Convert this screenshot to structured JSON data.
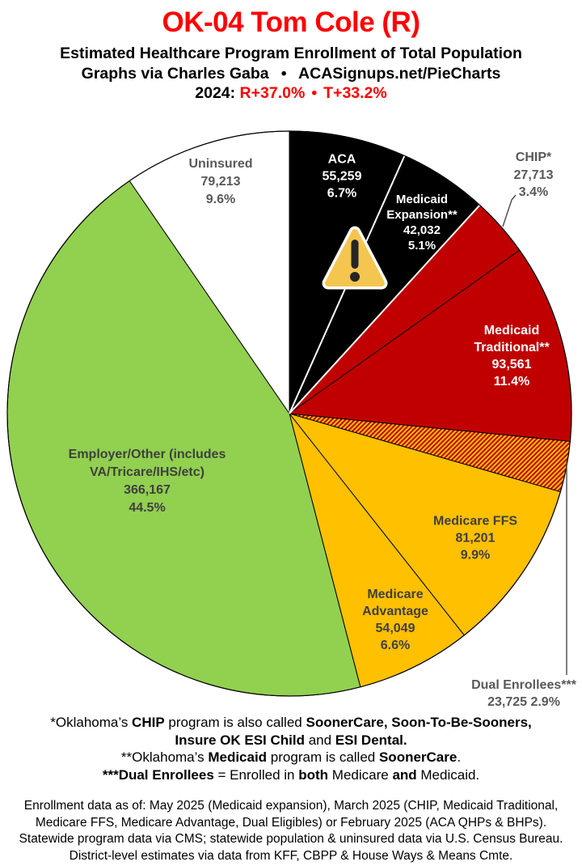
{
  "header": {
    "title": "OK-04 Tom Cole (R)",
    "subtitle": "Estimated Healthcare Program Enrollment of Total Population",
    "credit": "Graphs via Charles Gaba  •  ACASignups.net/PieCharts",
    "partisan": {
      "prefix": "2024:",
      "r": "R+37.0%",
      "bullet": "•",
      "t": "T+33.2%"
    }
  },
  "chart_data": {
    "type": "pie",
    "title": "OK-04 Estimated Healthcare Program Enrollment of Total Population",
    "start_angle_deg": 0,
    "direction": "clockwise",
    "hatch_colors": [
      "#FFC000",
      "#C00000"
    ],
    "slices": [
      {
        "id": "aca",
        "label": "ACA",
        "value": 55259,
        "value_text": "55,259",
        "pct": 6.7,
        "pct_text": "6.7%",
        "color": "#000000",
        "text_color": "#FFFFFF"
      },
      {
        "id": "medicaid-expansion",
        "label": "Medicaid Expansion**",
        "value": 42032,
        "value_text": "42,032",
        "pct": 5.1,
        "pct_text": "5.1%",
        "color": "#000000",
        "text_color": "#FFFFFF"
      },
      {
        "id": "chip",
        "label": "CHIP*",
        "value": 27713,
        "value_text": "27,713",
        "pct": 3.4,
        "pct_text": "3.4%",
        "color": "#C00000",
        "text_color": "#595959"
      },
      {
        "id": "medicaid-traditional",
        "label": "Medicaid Traditional**",
        "value": 93561,
        "value_text": "93,561",
        "pct": 11.4,
        "pct_text": "11.4%",
        "color": "#C00000",
        "text_color": "#FFFFFF"
      },
      {
        "id": "dual-enrollees",
        "label": "Dual Enrollees***",
        "value": 23725,
        "value_text": "23,725",
        "pct": 2.9,
        "pct_text": "2.9%",
        "color": "hatch",
        "text_color": "#595959"
      },
      {
        "id": "medicare-ffs",
        "label": "Medicare FFS",
        "value": 81201,
        "value_text": "81,201",
        "pct": 9.9,
        "pct_text": "9.9%",
        "color": "#FFC000",
        "text_color": "#3F3F3F"
      },
      {
        "id": "medicare-advantage",
        "label": "Medicare Advantage",
        "value": 54049,
        "value_text": "54,049",
        "pct": 6.6,
        "pct_text": "6.6%",
        "color": "#FFC000",
        "text_color": "#3F3F3F"
      },
      {
        "id": "employer-other",
        "label": "Employer/Other (includes VA/Tricare/IHS/etc)",
        "value": 366167,
        "value_text": "366,167",
        "pct": 44.5,
        "pct_text": "44.5%",
        "color": "#92D050",
        "text_color": "#3F3F3F"
      },
      {
        "id": "uninsured",
        "label": "Uninsured",
        "value": 79213,
        "value_text": "79,213",
        "pct": 9.6,
        "pct_text": "9.6%",
        "color": "#FFFFFF",
        "text_color": "#595959"
      }
    ]
  },
  "icons": {
    "warning_icon": "⚠"
  },
  "footnotes": {
    "line1": "*Oklahoma’s <b>CHIP</b> program is also called <b>SoonerCare, Soon-To-Be-Sooners,</b>",
    "line2": "<b>Insure OK ESI Child</b> and <b>ESI Dental.</b>",
    "line3": "**Oklahoma’s <b>Medicaid</b> program is called <b>SoonerCare</b>.",
    "line4": "<b>***Dual Enrollees</b> = Enrolled in <b>both</b> Medicare <b>and</b> Medicaid."
  },
  "source": {
    "line1": "Enrollment data as of: May 2025 (Medicaid expansion), March 2025 (CHIP, Medicaid Traditional,",
    "line2": "Medicare FFS, Medicare Advantage, Dual Eligibles) or February 2025 (ACA QHPs & BHPs).",
    "line3": "Statewide program data via CMS; statewide population & uninsured data via U.S. Census Bureau.",
    "line4": "District-level estimates via data from KFF, CBPP & House Ways & Means Cmte."
  }
}
